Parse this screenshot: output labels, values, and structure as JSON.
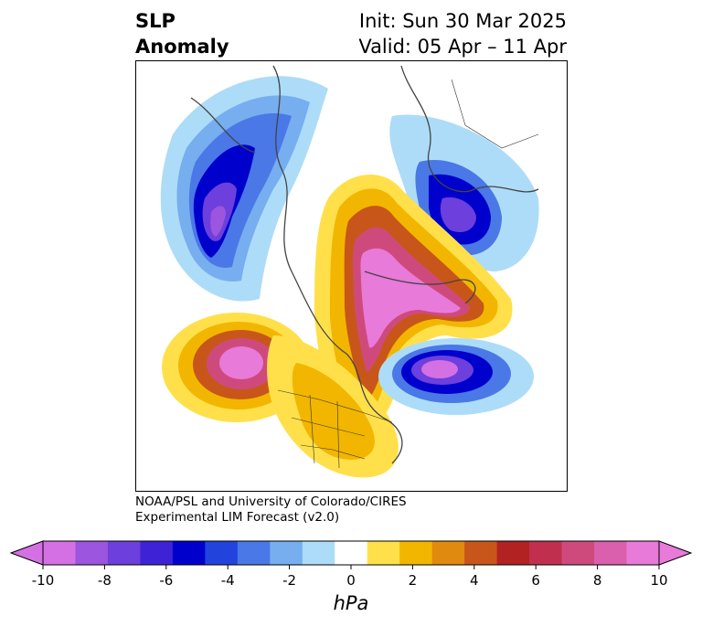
{
  "title": {
    "left_line1": "SLP",
    "left_line2": "Anomaly",
    "right_line1": "Init: Sun 30 Mar 2025",
    "right_line2": "Valid: 05 Apr – 11 Apr"
  },
  "credit": {
    "line1": "NOAA/PSL and University of Colorado/CIRES",
    "line2": "Experimental LIM Forecast (v2.0)"
  },
  "colorbar": {
    "unit": "hPa",
    "ticks": [
      "-10",
      "-8",
      "-6",
      "-4",
      "-2",
      "0",
      "2",
      "4",
      "6",
      "8",
      "10"
    ],
    "colors": [
      "#d470e4",
      "#9b55de",
      "#6d3fdc",
      "#3e23d6",
      "#0000cc",
      "#2244dd",
      "#4a78e6",
      "#76aef0",
      "#addcf8",
      "#ffffff",
      "#ffe04a",
      "#f2b600",
      "#e08a10",
      "#c8561a",
      "#b22222",
      "#c0304e",
      "#cf4a7c",
      "#da60ad",
      "#e87ad9"
    ],
    "min_extend_color": "#d470e4",
    "max_extend_color": "#e87ad9"
  }
}
